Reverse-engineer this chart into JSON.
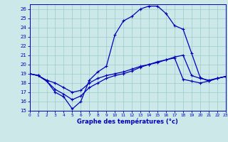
{
  "title": "Graphe des températures (°c)",
  "bg_color": "#cce8e8",
  "line_color": "#0000bb",
  "grid_color": "#99cccc",
  "xlim": [
    0,
    23
  ],
  "ylim": [
    15,
    26.5
  ],
  "yticks": [
    15,
    16,
    17,
    18,
    19,
    20,
    21,
    22,
    23,
    24,
    25,
    26
  ],
  "xticks": [
    0,
    1,
    2,
    3,
    4,
    5,
    6,
    7,
    8,
    9,
    10,
    11,
    12,
    13,
    14,
    15,
    16,
    17,
    18,
    19,
    20,
    21,
    22,
    23
  ],
  "s1_x": [
    0,
    1,
    2,
    3,
    4,
    5,
    6,
    7,
    8,
    9,
    10,
    11,
    12,
    13,
    14,
    15,
    16,
    17,
    18,
    19,
    20,
    21,
    22,
    23
  ],
  "s1_y": [
    19.0,
    18.8,
    18.3,
    18.0,
    17.5,
    17.0,
    17.2,
    18.0,
    18.5,
    18.8,
    19.0,
    19.2,
    19.5,
    19.8,
    20.0,
    20.3,
    20.5,
    20.8,
    21.0,
    18.8,
    18.5,
    18.3,
    18.5,
    18.7
  ],
  "s2_x": [
    0,
    1,
    2,
    3,
    4,
    5,
    6,
    7,
    8,
    9,
    10,
    11,
    12,
    13,
    14,
    15,
    16,
    17,
    18,
    19,
    20,
    21,
    22,
    23
  ],
  "s2_y": [
    19.0,
    18.8,
    18.2,
    17.3,
    16.8,
    16.2,
    16.6,
    17.5,
    18.0,
    18.5,
    18.8,
    19.0,
    19.3,
    19.7,
    20.0,
    20.2,
    20.5,
    20.7,
    18.4,
    18.2,
    18.0,
    18.2,
    18.5,
    18.7
  ],
  "s3_x": [
    0,
    1,
    2,
    3,
    4,
    5,
    6,
    7,
    8,
    9,
    10,
    11,
    12,
    13,
    14,
    15,
    16,
    17,
    18,
    19,
    20,
    21,
    22,
    23
  ],
  "s3_y": [
    19.0,
    18.8,
    18.2,
    17.0,
    16.5,
    15.2,
    16.0,
    18.3,
    19.2,
    19.8,
    23.2,
    24.7,
    25.2,
    26.0,
    26.3,
    26.3,
    25.5,
    24.2,
    23.8,
    21.2,
    18.6,
    18.2,
    18.5,
    18.7
  ],
  "ms": 3,
  "lw": 0.9,
  "tick_fontsize": 5.0,
  "xlabel_fontsize": 6.0,
  "fig_w": 3.2,
  "fig_h": 2.0,
  "dpi": 100
}
